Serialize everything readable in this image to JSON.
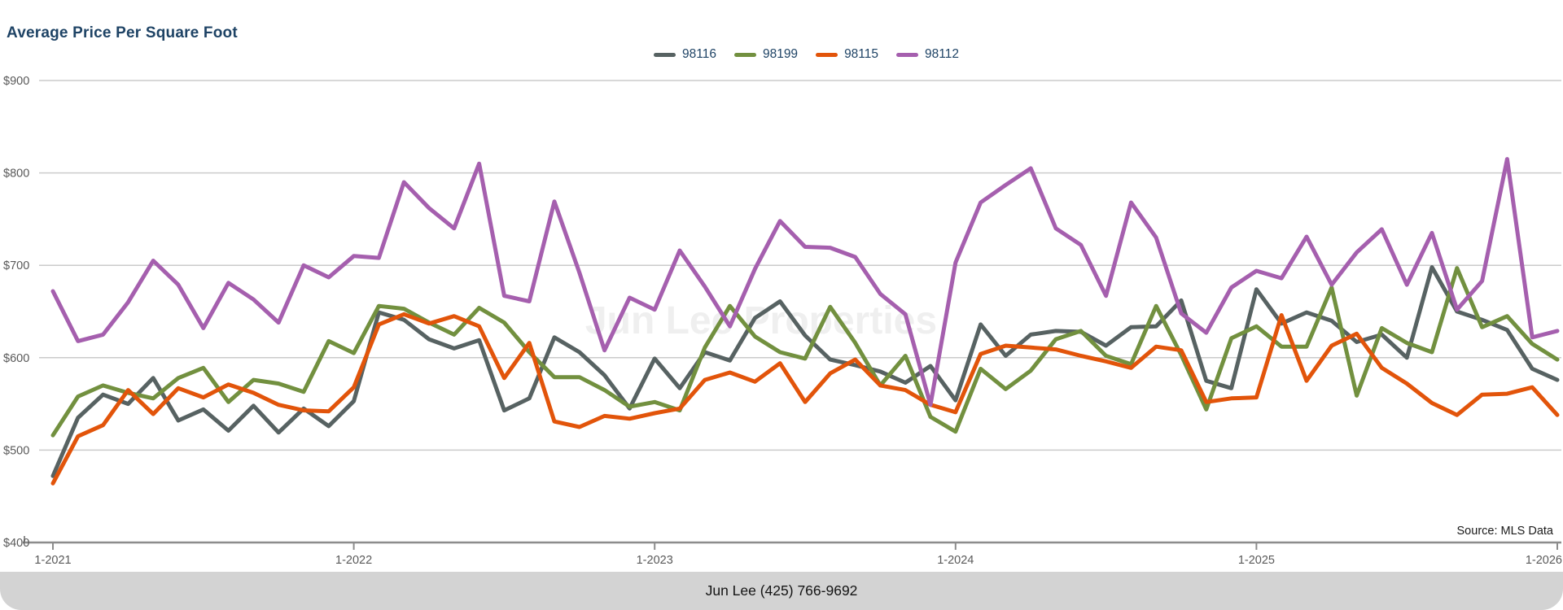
{
  "title": "Average Price Per Square Foot",
  "source_note": "Source: MLS Data",
  "watermark": "Jun Lee Properties",
  "footer": {
    "contact_label": "Jun Lee (425) 766-9692"
  },
  "legend": {
    "items": [
      {
        "label": "98116",
        "color": "#576262"
      },
      {
        "label": "98199",
        "color": "#72903f"
      },
      {
        "label": "98115",
        "color": "#e2540a"
      },
      {
        "label": "98112",
        "color": "#a55fae"
      }
    ]
  },
  "chart_data": {
    "type": "line",
    "title": "Average Price Per Square Foot",
    "x_interval": "monthly",
    "x_start": "1-2021",
    "x_end": "1-2026",
    "x_tick_labels": [
      "1-2021",
      "1-2022",
      "1-2023",
      "1-2024",
      "1-2025",
      "1-2026"
    ],
    "y_tick_labels": [
      "$400",
      "$500",
      "$600",
      "$700",
      "$800",
      "$900"
    ],
    "y_ticks": [
      400,
      500,
      600,
      700,
      800,
      900
    ],
    "ylim": [
      400,
      900
    ],
    "grid": "horizontal",
    "legend_position": "top-center",
    "series": [
      {
        "name": "98116",
        "color": "#576262",
        "values": [
          472,
          535,
          560,
          550,
          578,
          532,
          544,
          521,
          548,
          519,
          545,
          526,
          553,
          649,
          641,
          620,
          610,
          619,
          543,
          556,
          622,
          606,
          581,
          545,
          599,
          567,
          606,
          597,
          643,
          661,
          624,
          598,
          592,
          585,
          573,
          591,
          554,
          636,
          602,
          625,
          629,
          628,
          613,
          633,
          634,
          662,
          575,
          567,
          674,
          637,
          649,
          640,
          617,
          625,
          600,
          698,
          650,
          641,
          630,
          588,
          576
        ]
      },
      {
        "name": "98199",
        "color": "#72903f",
        "values": [
          516,
          558,
          570,
          562,
          556,
          578,
          589,
          552,
          576,
          572,
          563,
          618,
          605,
          656,
          653,
          638,
          625,
          654,
          638,
          606,
          579,
          579,
          565,
          547,
          552,
          543,
          611,
          656,
          623,
          606,
          599,
          655,
          616,
          570,
          602,
          536,
          520,
          588,
          566,
          586,
          620,
          629,
          602,
          593,
          656,
          603,
          544,
          621,
          634,
          612,
          612,
          676,
          559,
          632,
          616,
          606,
          697,
          633,
          645,
          615,
          598
        ]
      },
      {
        "name": "98115",
        "color": "#e2540a",
        "values": [
          464,
          515,
          527,
          565,
          539,
          567,
          557,
          571,
          562,
          549,
          543,
          542,
          568,
          636,
          647,
          637,
          645,
          634,
          578,
          616,
          531,
          525,
          537,
          534,
          540,
          545,
          576,
          584,
          574,
          594,
          552,
          583,
          598,
          570,
          565,
          549,
          541,
          604,
          613,
          611,
          609,
          602,
          596,
          589,
          612,
          608,
          552,
          556,
          557,
          646,
          575,
          613,
          626,
          589,
          572,
          551,
          538,
          560,
          561,
          568,
          538
        ]
      },
      {
        "name": "98112",
        "color": "#a55fae",
        "values": [
          672,
          618,
          625,
          660,
          705,
          679,
          632,
          681,
          663,
          638,
          700,
          687,
          710,
          708,
          790,
          762,
          740,
          810,
          667,
          661,
          769,
          692,
          608,
          665,
          652,
          716,
          677,
          634,
          696,
          748,
          720,
          719,
          709,
          669,
          647,
          549,
          703,
          768,
          787,
          805,
          740,
          722,
          667,
          768,
          730,
          648,
          627,
          676,
          694,
          686,
          731,
          679,
          714,
          739,
          679,
          735,
          652,
          683,
          815,
          622,
          629
        ]
      }
    ]
  }
}
